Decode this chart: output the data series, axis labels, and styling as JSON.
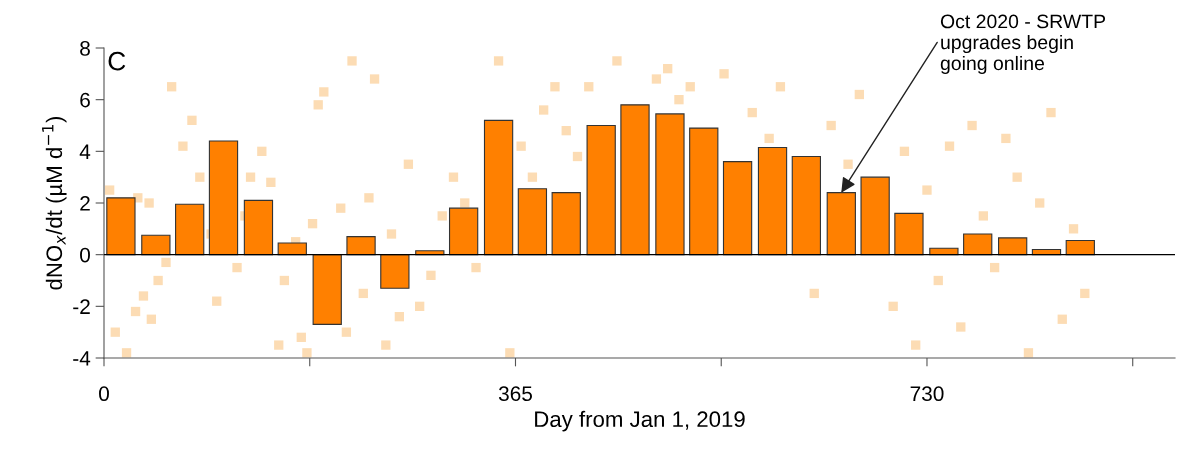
{
  "chart_data": {
    "type": "bar",
    "title": "C",
    "xlabel": "Day from Jan 1, 2019",
    "ylabel": "dNO$_{x}$/dt (µM d$^{−1}$)",
    "x": [
      15,
      46,
      76,
      106,
      137,
      167,
      198,
      228,
      258,
      289,
      319,
      350,
      380,
      410,
      441,
      471,
      502,
      532,
      562,
      593,
      623,
      654,
      684,
      714,
      745,
      775,
      806,
      836,
      866
    ],
    "series": [
      {
        "type": "scatter",
        "color": "#fcdcb4",
        "x": [
          5,
          20,
          28,
          35,
          40,
          48,
          55,
          60,
          10,
          30,
          42,
          70,
          78,
          85,
          95,
          100,
          118,
          125,
          130,
          140,
          148,
          155,
          160,
          170,
          175,
          180,
          185,
          190,
          195,
          210,
          215,
          220,
          230,
          235,
          240,
          250,
          255,
          262,
          270,
          280,
          290,
          300,
          310,
          320,
          330,
          340,
          350,
          360,
          370,
          380,
          390,
          400,
          410,
          420,
          430,
          455,
          490,
          500,
          510,
          520,
          550,
          575,
          590,
          600,
          630,
          645,
          660,
          670,
          700,
          710,
          720,
          730,
          740,
          750,
          760,
          770,
          780,
          790,
          800,
          810,
          820,
          830,
          840,
          850,
          860,
          870
        ],
        "values": [
          2.5,
          -3.8,
          -2.2,
          -1.6,
          2.0,
          -1.0,
          -0.3,
          6.5,
          -3.0,
          2.2,
          -2.5,
          4.2,
          5.2,
          3.0,
          0.8,
          -1.8,
          -0.5,
          1.5,
          3.0,
          4.0,
          2.8,
          -3.5,
          -1.0,
          0.5,
          -3.2,
          -3.8,
          1.2,
          5.8,
          6.3,
          1.8,
          -3.0,
          7.5,
          -1.5,
          2.2,
          6.8,
          -3.5,
          0.8,
          -2.4,
          3.5,
          -2.0,
          -0.8,
          1.5,
          3.0,
          2.0,
          -0.5,
          null,
          7.5,
          -3.8,
          4.2,
          3.0,
          5.6,
          6.5,
          4.8,
          3.8,
          6.5,
          7.5,
          6.8,
          7.2,
          6.0,
          6.5,
          7.0,
          5.5,
          4.5,
          6.5,
          -1.5,
          5.0,
          3.5,
          6.2,
          -2.0,
          4.0,
          -3.5,
          2.5,
          -1.0,
          4.2,
          -2.8,
          5.0,
          1.5,
          -0.5,
          4.5,
          3.0,
          -3.8,
          2.0,
          5.5,
          -2.5,
          1.0,
          -1.5
        ]
      },
      {
        "color": "#ff8000",
        "values": [
          2.2,
          0.75,
          1.95,
          4.4,
          2.1,
          0.45,
          -2.7,
          0.7,
          -1.3,
          0.15,
          1.8,
          5.2,
          2.55,
          2.4,
          5.0,
          5.8,
          5.45,
          4.9,
          3.6,
          4.15,
          3.8,
          2.4,
          3.0,
          1.6,
          0.25,
          0.8,
          0.65,
          0.2,
          0.55
        ]
      }
    ],
    "xlim": [
      0,
      950
    ],
    "xticks": [
      0,
      {
        "value": 182.5,
        "label": null
      },
      365,
      {
        "value": 547.5,
        "label": null
      },
      730,
      {
        "value": 912.5,
        "label": null
      }
    ],
    "ylim": [
      -4,
      8
    ],
    "yticks": [
      -4,
      -2,
      0,
      2,
      4,
      6,
      8
    ],
    "ref_lines": [
      {
        "axis": "y",
        "value": 0,
        "color": "#000000"
      }
    ],
    "annotations": [
      {
        "text": "Oct 2020 - SRWTP\nupgrades begin\ngoing online",
        "x": 654,
        "y": 2.4
      }
    ],
    "grid": false,
    "legend": false
  }
}
